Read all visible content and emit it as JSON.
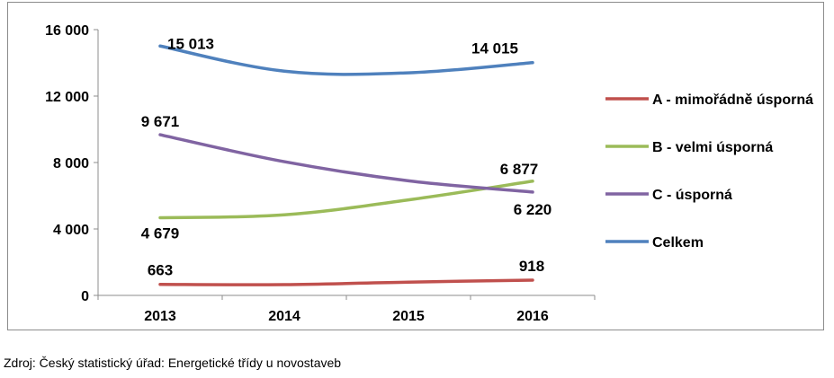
{
  "chart_data": {
    "type": "line",
    "categories": [
      "2013",
      "2014",
      "2015",
      "2016"
    ],
    "ylim": [
      0,
      16000
    ],
    "yticks": [
      0,
      4000,
      8000,
      12000,
      16000
    ],
    "ytick_labels": [
      "0",
      "4 000",
      "8 000",
      "12 000",
      "16 000"
    ],
    "grid": false,
    "legend_position": "right",
    "series": [
      {
        "name": "A - mimořádně úsporná",
        "color": "#c0504d",
        "values": [
          663,
          650,
          800,
          918
        ],
        "labels": [
          {
            "index": 0,
            "text": "663"
          },
          {
            "index": 3,
            "text": "918"
          }
        ]
      },
      {
        "name": "B - velmi úsporná",
        "color": "#9bbb59",
        "values": [
          4679,
          4850,
          5750,
          6877
        ],
        "labels": [
          {
            "index": 0,
            "text": "4 679"
          },
          {
            "index": 3,
            "text": "6 877"
          }
        ]
      },
      {
        "name": "C - úsporná",
        "color": "#8064a2",
        "values": [
          9671,
          8050,
          6900,
          6220
        ],
        "labels": [
          {
            "index": 0,
            "text": "9 671"
          },
          {
            "index": 3,
            "text": "6 220"
          }
        ]
      },
      {
        "name": "Celkem",
        "color": "#4f81bd",
        "values": [
          15013,
          13500,
          13400,
          14015
        ],
        "labels": [
          {
            "index": 0,
            "text": "15 013"
          },
          {
            "index": 3,
            "text": "14 015"
          }
        ]
      }
    ]
  },
  "source_text": "Zdroj: Český statistický úřad: Energetické třídy u novostaveb"
}
